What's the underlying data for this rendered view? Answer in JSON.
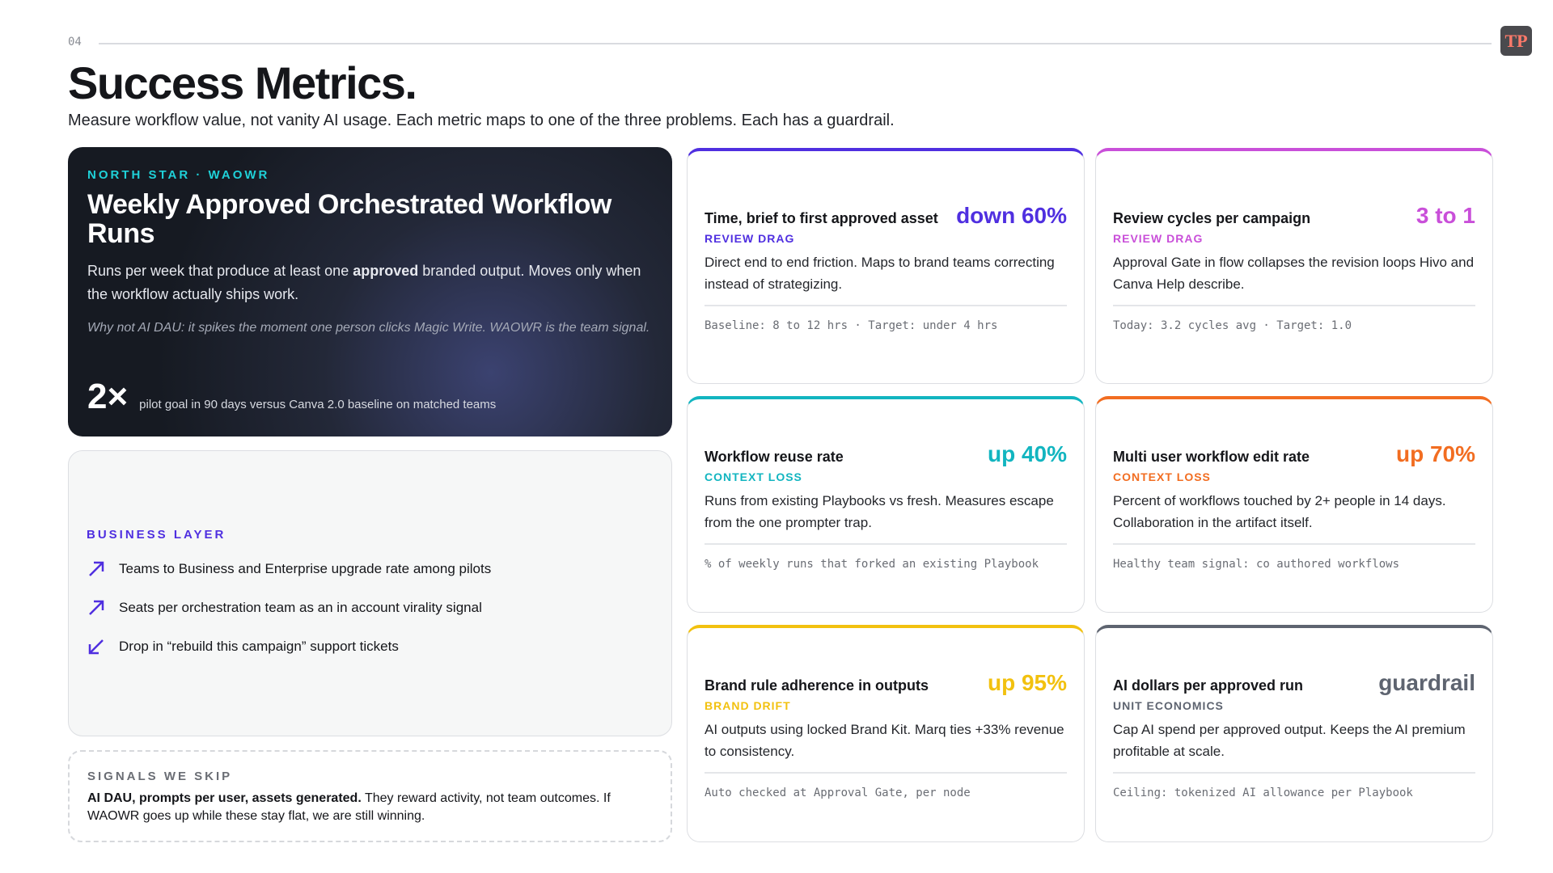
{
  "header": {
    "page_number": "04",
    "logo": "TP",
    "title": "Success Metrics.",
    "subtitle": "Measure workflow value, not vanity AI usage. Each metric maps to one of the three problems. Each has a guardrail."
  },
  "north_star": {
    "eyebrow": "NORTH STAR · WAOWR",
    "title": "Weekly Approved Orchestrated Workflow Runs",
    "description": [
      "Runs per week that produce at least one ",
      "approved",
      " branded output. Moves only when the workflow actually ships work."
    ],
    "note": "Why not AI DAU: it spikes the moment one person clicks Magic Write. WAOWR is the team signal.",
    "stat": "2×",
    "stat_caption": "pilot goal in 90 days versus Canva 2.0 baseline on matched teams"
  },
  "business_layer": {
    "heading": "BUSINESS LAYER",
    "items": [
      "Teams to Business and Enterprise upgrade rate among pilots",
      "Seats per orchestration team as an in account virality signal",
      "Drop in “rebuild this campaign” support tickets"
    ]
  },
  "signals_we_skip": {
    "heading": "SIGNALS WE SKIP",
    "bold": "AI DAU, prompts per user, assets generated.",
    "text": " They reward activity, not team outcomes. If WAOWR goes up while these stay flat, we are still winning."
  },
  "metrics": [
    {
      "title": "Time, brief to first approved asset",
      "value": "down 60%",
      "tag": "REVIEW DRAG",
      "description": "Direct end to end friction. Maps to brand teams correcting instead of strategizing.",
      "footer": "Baseline: 8 to 12 hrs · Target: under 4 hrs",
      "color": "#4f2fe0"
    },
    {
      "title": "Review cycles per campaign",
      "value": "3 to 1",
      "tag": "REVIEW DRAG",
      "description": "Approval Gate in flow collapses the revision loops Hivo and Canva Help describe.",
      "footer": "Today: 3.2 cycles avg · Target: 1.0",
      "color": "#c94fd9"
    },
    {
      "title": "Workflow reuse rate",
      "value": "up 40%",
      "tag": "CONTEXT LOSS",
      "description": "Runs from existing Playbooks vs fresh. Measures escape from the one prompter trap.",
      "footer": "% of weekly runs that forked an existing Playbook",
      "color": "#12b5c0"
    },
    {
      "title": "Multi user workflow edit rate",
      "value": "up 70%",
      "tag": "CONTEXT LOSS",
      "description": "Percent of workflows touched by 2+ people in 14 days. Collaboration in the artifact itself.",
      "footer": "Healthy team signal: co authored workflows",
      "color": "#f26d21"
    },
    {
      "title": "Brand rule adherence in outputs",
      "value": "up 95%",
      "tag": "BRAND DRIFT",
      "description": "AI outputs using locked Brand Kit. Marq ties +33% revenue to consistency.",
      "footer": "Auto checked at Approval Gate, per node",
      "color": "#f2c10f"
    },
    {
      "title": "AI dollars per approved run",
      "value": "guardrail",
      "tag": "UNIT ECONOMICS",
      "description": "Cap AI spend per approved output. Keeps the AI premium profitable at scale.",
      "footer": "Ceiling: tokenized AI allowance per Playbook",
      "color": "#5e6470"
    }
  ]
}
